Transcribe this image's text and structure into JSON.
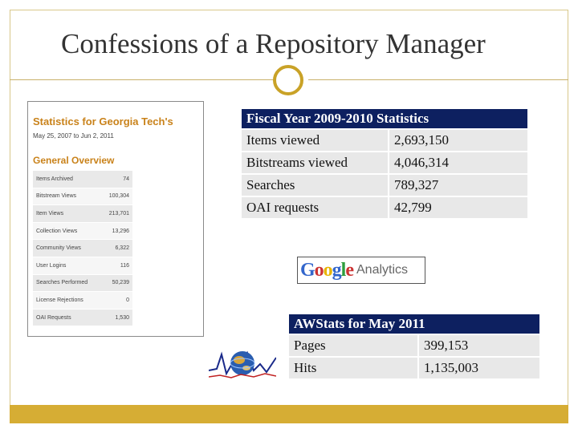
{
  "slide": {
    "title": "Confessions of a Repository Manager",
    "colors": {
      "accent_gold": "#d6ad34",
      "ring": "#c9a227",
      "table_header": "#0d2060",
      "cell_gray": "#e8e8e8"
    }
  },
  "screenshot": {
    "title": "Statistics for Georgia Tech's",
    "dates": "May 25, 2007 to Jun 2, 2011",
    "heading": "General Overview",
    "rows": [
      {
        "label": "Items Archived",
        "value": "74"
      },
      {
        "label": "Bitstream Views",
        "value": "100,304"
      },
      {
        "label": "Item Views",
        "value": "213,701"
      },
      {
        "label": "Collection Views",
        "value": "13,296"
      },
      {
        "label": "Community Views",
        "value": "6,322"
      },
      {
        "label": "User Logins",
        "value": "116"
      },
      {
        "label": "Searches Performed",
        "value": "50,239"
      },
      {
        "label": "License Rejections",
        "value": "0"
      },
      {
        "label": "OAI Requests",
        "value": "1,530"
      }
    ]
  },
  "fiscal": {
    "title": "Fiscal Year 2009-2010 Statistics",
    "rows": [
      {
        "label": "Items viewed",
        "value": "2,693,150"
      },
      {
        "label": "Bitstreams viewed",
        "value": "4,046,314"
      },
      {
        "label": "Searches",
        "value": "789,327"
      },
      {
        "label": "OAI requests",
        "value": "42,799"
      }
    ]
  },
  "google_analytics": {
    "g1": "G",
    "o1": "o",
    "o2": "o",
    "g2": "g",
    "l": "l",
    "e": "e",
    "word": "Analytics"
  },
  "awstats": {
    "title": "AWStats for May 2011",
    "rows": [
      {
        "label": "Pages",
        "value": "399,153"
      },
      {
        "label": "Hits",
        "value": "1,135,003"
      }
    ]
  }
}
